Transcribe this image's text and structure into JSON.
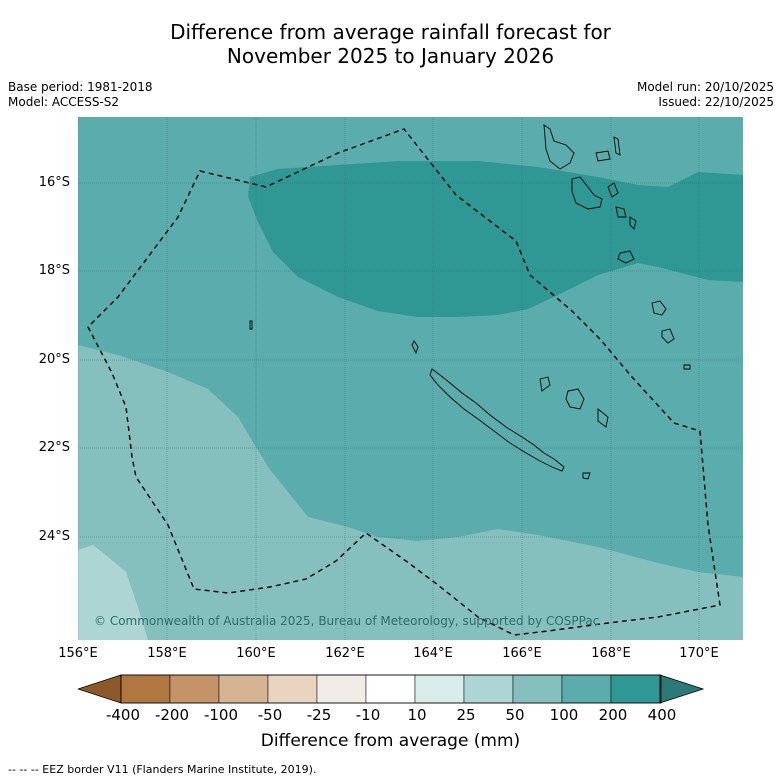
{
  "title": {
    "line1": "Difference from average rainfall forecast for",
    "line2": "November 2025 to January 2026"
  },
  "meta_left": {
    "base_period": "Base period: 1981-2018",
    "model": "Model: ACCESS-S2"
  },
  "meta_right": {
    "model_run": "Model run: 20/10/2025",
    "issued": "Issued: 22/10/2025"
  },
  "lat_labels": [
    "16°S",
    "18°S",
    "20°S",
    "22°S",
    "24°S"
  ],
  "lon_labels": [
    "156°E",
    "158°E",
    "160°E",
    "162°E",
    "164°E",
    "166°E",
    "168°E",
    "170°E"
  ],
  "copyright": "© Commonwealth of Australia 2025, Bureau of Meteorology, supported by COSPPac",
  "colorbar": {
    "labels": [
      "-400",
      "-200",
      "-100",
      "-50",
      "-25",
      "-10",
      "10",
      "25",
      "50",
      "100",
      "200",
      "400"
    ],
    "colors": [
      "#8c5a28",
      "#b07840",
      "#c49468",
      "#d5b494",
      "#e8d4c0",
      "#f0ece8",
      "#ffffff",
      "#d8ecea",
      "#acd5d4",
      "#85bfbe",
      "#5aadac",
      "#2f9895",
      "#2c7a77"
    ],
    "title": "Difference from average (mm)"
  },
  "footnote": "-- -- -- EEZ border V11 (Flanders Marine Institute, 2019).",
  "map_colors": {
    "c50": "#acd5d4",
    "c100": "#85bfbe",
    "c200": "#5aadac",
    "c400": "#2f9895"
  }
}
